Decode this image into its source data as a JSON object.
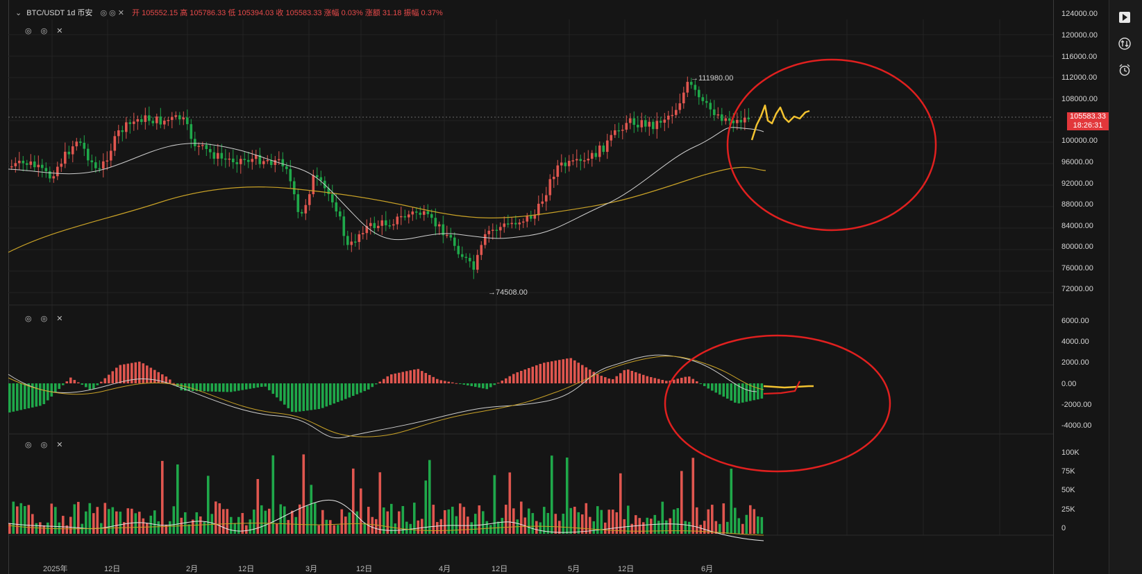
{
  "legend": {
    "symbol": "BTC/USDT 1d 币安",
    "ohlc": "开 105552.15 高 105786.33 低 105394.03 收 105583.33 涨幅 0.03% 涨额 31.18 振幅 0.37%"
  },
  "pane_controls": "◎ ◎ ✕",
  "price_axis": [
    "124000.00",
    "120000.00",
    "116000.00",
    "112000.00",
    "108000.00",
    "100000.00",
    "96000.00",
    "92000.00",
    "88000.00",
    "84000.00",
    "80000.00",
    "76000.00",
    "72000.00"
  ],
  "current_price": {
    "value": "105583.33",
    "countdown": "18:26:31"
  },
  "high_label": "111980.00",
  "low_label": "74508.00",
  "macd_axis": [
    "6000.00",
    "4000.00",
    "2000.00",
    "0.00",
    "-2000.00",
    "-4000.00"
  ],
  "volume_axis": [
    "100K",
    "75K",
    "50K",
    "25K",
    "0"
  ],
  "time_axis": [
    "2025年",
    "12日",
    "2月",
    "12日",
    "3月",
    "12日",
    "4月",
    "12日",
    "5月",
    "12日",
    "6月"
  ],
  "colors": {
    "up": "#e0564f",
    "down": "#1fa84a",
    "ma_short": "#cfcfcf",
    "ma_long": "#c9a227",
    "annotation": "#e0201f",
    "scribble": "#f2c230",
    "price_tag": "#e2373b"
  },
  "icons": [
    "play-square-icon",
    "arrows-updown-icon",
    "alarm-clock-icon"
  ]
}
